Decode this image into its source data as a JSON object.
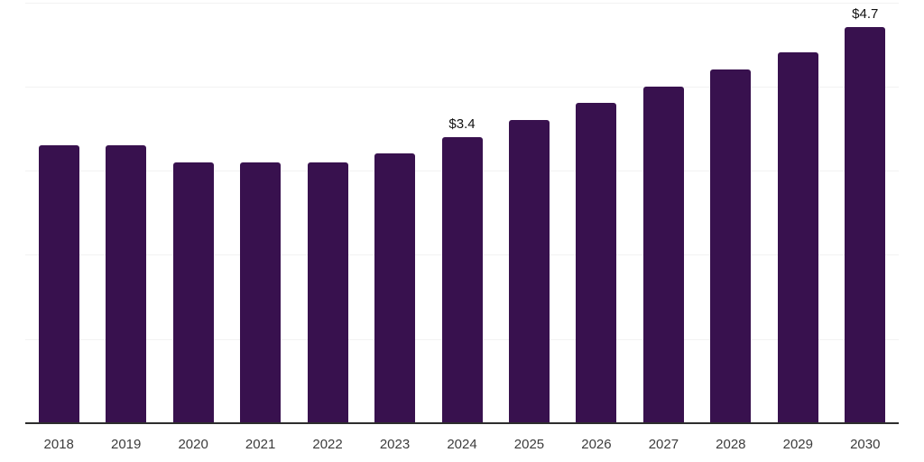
{
  "chart_data": {
    "type": "bar",
    "title": "",
    "xlabel": "",
    "ylabel": "",
    "categories": [
      "2018",
      "2019",
      "2020",
      "2021",
      "2022",
      "2023",
      "2024",
      "2025",
      "2026",
      "2027",
      "2028",
      "2029",
      "2030"
    ],
    "values": [
      3.3,
      3.3,
      3.1,
      3.1,
      3.1,
      3.2,
      3.4,
      3.6,
      3.8,
      4.0,
      4.2,
      4.4,
      4.7
    ],
    "value_unit": "USD (trillions/billions implied by $ prefix)",
    "data_labels": [
      {
        "index": 6,
        "text": "$3.4"
      },
      {
        "index": 12,
        "text": "$4.7"
      }
    ],
    "ylim": [
      0,
      5
    ],
    "gridline_step": 1,
    "grid": true,
    "legend_position": "none",
    "colors": {
      "bar": "#38114E",
      "gridline": "#F2F2F2",
      "axis_line": "#2D2D2D",
      "tick_label": "#3C3C3C",
      "data_label": "#111111",
      "background": "#FFFFFF"
    }
  }
}
